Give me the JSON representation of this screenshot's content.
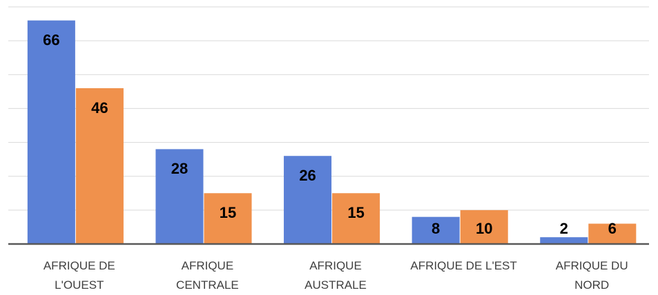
{
  "chart_data": {
    "type": "bar",
    "categories": [
      "AFRIQUE DE L'OUEST",
      "AFRIQUE CENTRALE",
      "AFRIQUE AUSTRALE",
      "AFRIQUE DE L'EST",
      "AFRIQUE DU NORD"
    ],
    "series": [
      {
        "color": "#5b80d6",
        "values": [
          66,
          28,
          26,
          8,
          2
        ]
      },
      {
        "color": "#f0914c",
        "values": [
          46,
          15,
          15,
          10,
          6
        ]
      }
    ],
    "ylim": [
      0,
      70
    ],
    "yticks": [
      0,
      10,
      20,
      30,
      40,
      50,
      60,
      70
    ],
    "grid": true
  }
}
